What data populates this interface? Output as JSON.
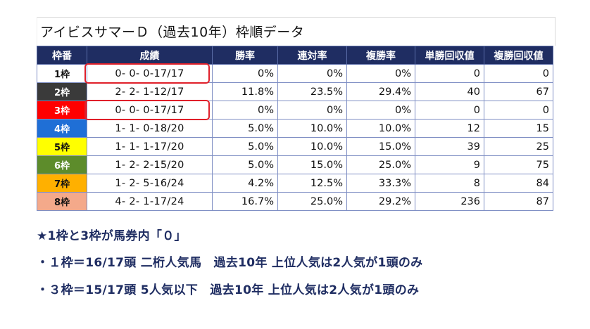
{
  "title": "アイビスサマーＤ（過去10年）枠順データ",
  "table": {
    "headers": [
      "枠番",
      "成績",
      "勝率",
      "連対率",
      "複勝率",
      "単勝回収値",
      "複勝回収値"
    ],
    "rows": [
      {
        "waku": "1枠",
        "record": "0- 0- 0-17/17",
        "win": "0%",
        "rentai": "0%",
        "fukusho": "0%",
        "tan_kaishu": "0",
        "fuku_kaishu": "0",
        "bg": "#ffffff",
        "fg": "#111111"
      },
      {
        "waku": "2枠",
        "record": "2- 2- 1-12/17",
        "win": "11.8%",
        "rentai": "23.5%",
        "fukusho": "29.4%",
        "tan_kaishu": "40",
        "fuku_kaishu": "67",
        "bg": "#3a3a3a",
        "fg": "#ffffff"
      },
      {
        "waku": "3枠",
        "record": "0- 0- 0-17/17",
        "win": "0%",
        "rentai": "0%",
        "fukusho": "0%",
        "tan_kaishu": "0",
        "fuku_kaishu": "0",
        "bg": "#ff0000",
        "fg": "#ffffff"
      },
      {
        "waku": "4枠",
        "record": "1- 1- 0-18/20",
        "win": "5.0%",
        "rentai": "10.0%",
        "fukusho": "10.0%",
        "tan_kaishu": "12",
        "fuku_kaishu": "15",
        "bg": "#1f6fd6",
        "fg": "#ffffff"
      },
      {
        "waku": "5枠",
        "record": "1- 1- 1-17/20",
        "win": "5.0%",
        "rentai": "10.0%",
        "fukusho": "15.0%",
        "tan_kaishu": "39",
        "fuku_kaishu": "25",
        "bg": "#ffff00",
        "fg": "#111111"
      },
      {
        "waku": "6枠",
        "record": "1- 2- 2-15/20",
        "win": "5.0%",
        "rentai": "15.0%",
        "fukusho": "25.0%",
        "tan_kaishu": "9",
        "fuku_kaishu": "75",
        "bg": "#5d8c2b",
        "fg": "#ffffff"
      },
      {
        "waku": "7枠",
        "record": "1- 2- 5-16/24",
        "win": "4.2%",
        "rentai": "12.5%",
        "fukusho": "33.3%",
        "tan_kaishu": "8",
        "fuku_kaishu": "84",
        "bg": "#ffb000",
        "fg": "#111111"
      },
      {
        "waku": "8枠",
        "record": "4- 2- 1-17/24",
        "win": "16.7%",
        "rentai": "25.0%",
        "fukusho": "29.2%",
        "tan_kaishu": "236",
        "fuku_kaishu": "87",
        "bg": "#f4a98a",
        "fg": "#111111"
      }
    ]
  },
  "notes": [
    "★1枠と3枠が馬券内「０」",
    "・１枠＝16/17頭 二桁人気馬　過去10年 上位人気は2人気が1頭のみ",
    "・３枠＝15/17頭 5人気以下　過去10年 上位人気は2人気が1頭のみ"
  ],
  "colors": {
    "header_bg": "#1f2d62",
    "highlight": "#e0202a",
    "note_text": "#1f2d62"
  }
}
